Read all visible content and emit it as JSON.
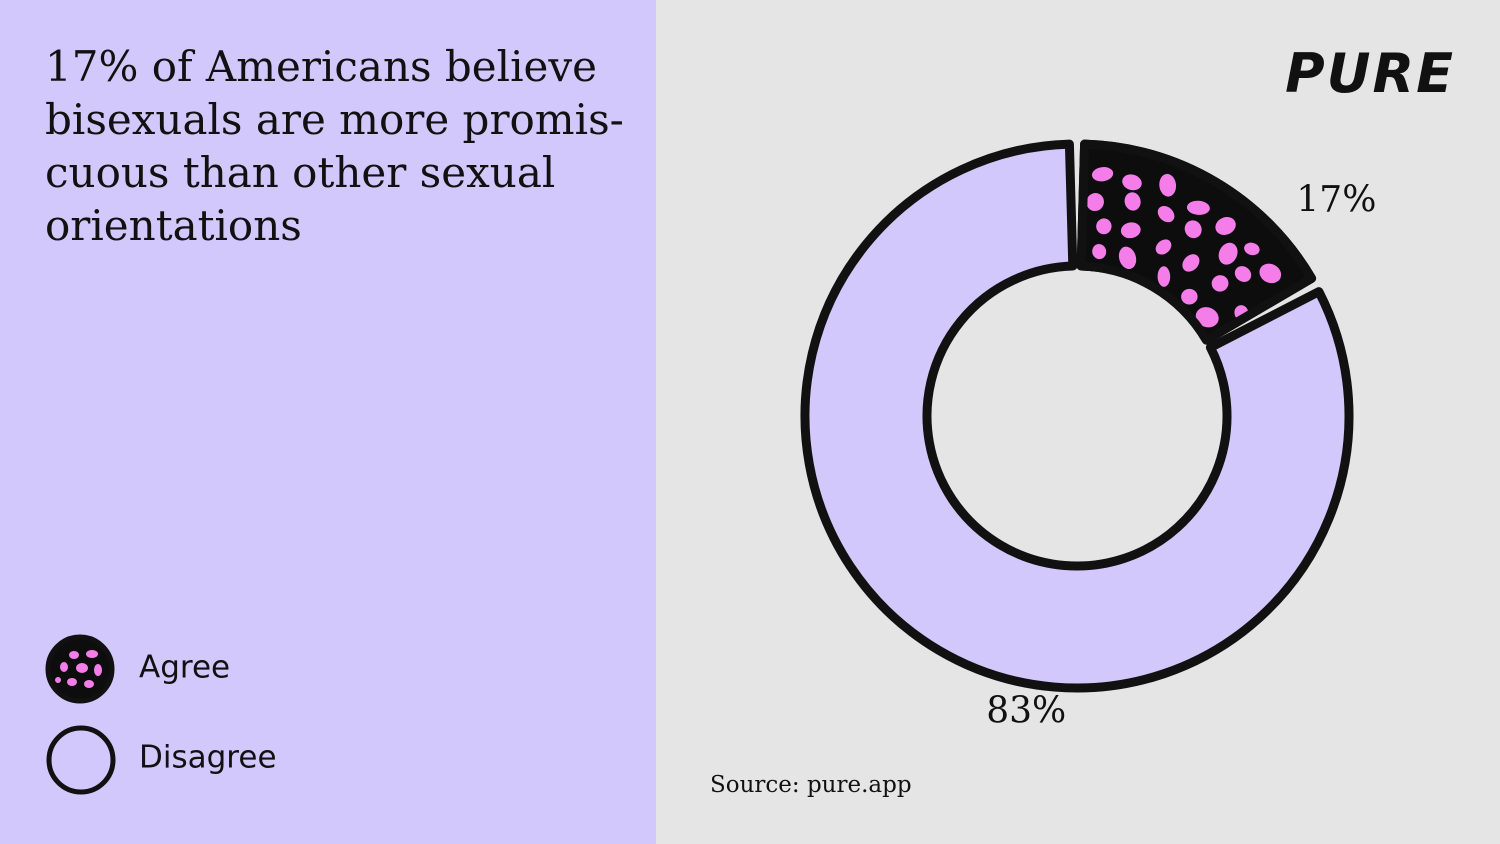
{
  "headline": {
    "lines": [
      "17% of Americans believe",
      "bisexuals are more promis-",
      "cuous than other sexual",
      "orientations"
    ]
  },
  "logo": "PURE",
  "source": "Source: pure.app",
  "colors": {
    "left_background": "#d3c8fb",
    "right_background": "#e5e5e5",
    "disagree_fill": "#d3c8fb",
    "agree_fill": "#0d0d0d",
    "agree_dots": "#f47de9",
    "outline": "#111111"
  },
  "legend": [
    {
      "label": "Agree",
      "icon": "dotted-circle-icon"
    },
    {
      "label": "Disagree",
      "icon": "empty-circle-icon"
    }
  ],
  "chart_data": {
    "type": "pie",
    "style": "donut",
    "title": "17% of Americans believe bisexuals are more promiscuous than other sexual orientations",
    "categories": [
      "Agree",
      "Disagree"
    ],
    "values": [
      17,
      83
    ],
    "labels": [
      "17%",
      "83%"
    ],
    "legend_position": "bottom-left"
  }
}
